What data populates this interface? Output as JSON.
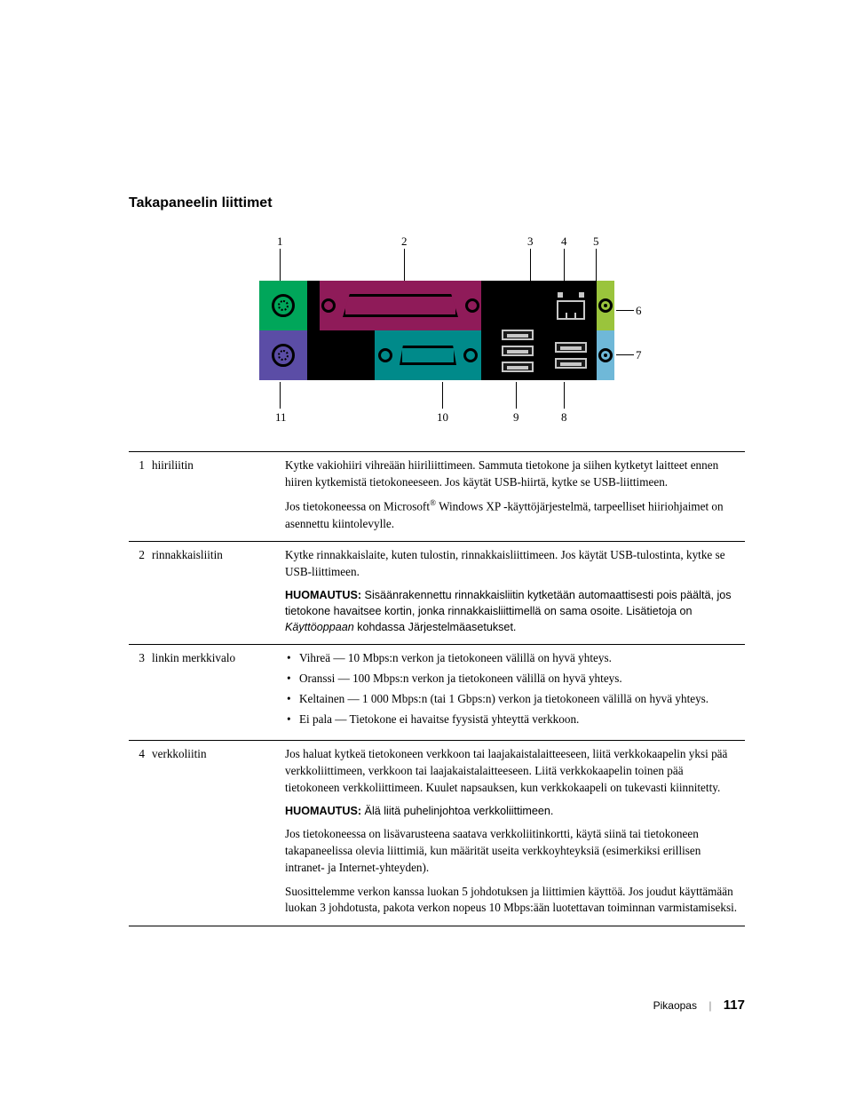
{
  "section_title": "Takapaneelin liittimet",
  "diagram": {
    "panel_bg": "#000000",
    "colors": {
      "mouse": "#00a65a",
      "keyboard": "#5b4da6",
      "parallel": "#8f1b59",
      "serial": "#008a8a",
      "line_out": "#9ac43c",
      "line_in": "#6fb8d8"
    },
    "callouts": [
      "1",
      "2",
      "3",
      "4",
      "5",
      "6",
      "7",
      "8",
      "9",
      "10",
      "11"
    ]
  },
  "rows": [
    {
      "num": "1",
      "name": "hiiriliitin",
      "paras": [
        "Kytke vakiohiiri vihreään hiiriliittimeen. Sammuta tietokone ja siihen kytketyt laitteet ennen hiiren kytkemistä tietokoneeseen. Jos käytät USB-hiirtä, kytke se USB-liittimeen.",
        "Jos tietokoneessa on Microsoft<sup>®</sup> Windows XP -käyttöjärjestelmä, tarpeelliset hiiriohjaimet on asennettu kiintolevylle."
      ]
    },
    {
      "num": "2",
      "name": "rinnakkaisliitin",
      "paras": [
        "Kytke rinnakkaislaite, kuten tulostin, rinnakkaisliittimeen. Jos käytät USB-tulostinta, kytke se USB-liittimeen."
      ],
      "note": {
        "label": "HUOMAUTUS:",
        "text_before": " Sisäänrakennettu rinnakkaisliitin kytketään automaattisesti pois päältä, jos tietokone havaitsee kortin, jonka rinnakkaisliittimellä on sama osoite. Lisätietoja on ",
        "italic": "Käyttöoppaan",
        "text_after": " kohdassa Järjestelmäasetukset."
      }
    },
    {
      "num": "3",
      "name": "linkin merkkivalo",
      "bullets": [
        "Vihreä — 10 Mbps:n verkon ja tietokoneen välillä on hyvä yhteys.",
        "Oranssi — 100 Mbps:n verkon ja tietokoneen välillä on hyvä yhteys.",
        "Keltainen — 1 000 Mbps:n (tai 1 Gbps:n) verkon ja tietokoneen välillä on hyvä yhteys.",
        "Ei pala — Tietokone ei havaitse fyysistä yhteyttä verkkoon."
      ]
    },
    {
      "num": "4",
      "name": "verkkoliitin",
      "paras": [
        "Jos haluat kytkeä tietokoneen verkkoon tai laajakaistalaitteeseen, liitä verkkokaapelin yksi pää verkkoliittimeen, verkkoon tai laajakaistalaitteeseen. Liitä verkkokaapelin toinen pää tietokoneen verkkoliittimeen. Kuulet napsauksen, kun verkkokaapeli on tukevasti kiinnitetty."
      ],
      "note2": {
        "label": "HUOMAUTUS:",
        "text": " Älä liitä puhelinjohtoa verkkoliittimeen."
      },
      "paras_after": [
        "Jos tietokoneessa on lisävarusteena saatava verkkoliitinkortti, käytä siinä tai tietokoneen takapaneelissa olevia liittimiä, kun määrität useita verkkoyhteyksiä (esimerkiksi erillisen intranet- ja Internet-yhteyden).",
        "Suosittelemme verkon kanssa luokan 5 johdotuksen ja liittimien käyttöä. Jos joudut käyttämään luokan 3 johdotusta, pakota verkon nopeus 10 Mbps:ään luotettavan toiminnan varmistamiseksi."
      ]
    }
  ],
  "footer": {
    "label": "Pikaopas",
    "page": "117"
  }
}
